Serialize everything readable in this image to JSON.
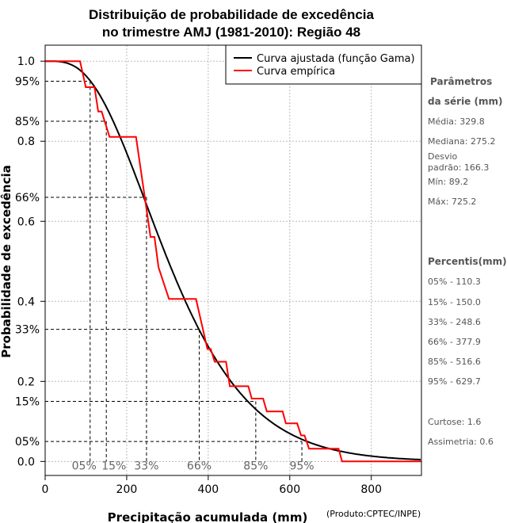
{
  "chart_data": {
    "type": "line",
    "title": [
      "Distribuição de probabilidade de excedência",
      "no trimestre AMJ (1981-2010): Região 48"
    ],
    "xlabel": "Precipitação acumulada (mm)",
    "ylabel": "Probabilidade de excedência",
    "xlim": [
      0,
      923
    ],
    "ylim": [
      -0.035,
      1.04
    ],
    "grid": true,
    "legend_position": "top-right",
    "x_ticks": [
      0,
      200,
      400,
      600,
      800
    ],
    "x_tick_labels": [
      "0",
      "200",
      "400",
      "600",
      "800"
    ],
    "y_ticks": [
      0.0,
      0.2,
      0.4,
      0.6,
      0.8,
      1.0
    ],
    "y_tick_labels": [
      "0.0",
      "0.2",
      "0.4",
      "0.6",
      "0.8",
      "1.0"
    ],
    "percentile_lines": [
      {
        "label": "05%",
        "prob": 0.95,
        "mm": 110.3,
        "ylabel": "95%"
      },
      {
        "label": "15%",
        "prob": 0.85,
        "mm": 150.0,
        "ylabel": "85%"
      },
      {
        "label": "33%",
        "prob": 0.66,
        "mm": 248.6,
        "ylabel": "66%"
      },
      {
        "label": "66%",
        "prob": 0.33,
        "mm": 377.9,
        "ylabel": "33%"
      },
      {
        "label": "85%",
        "prob": 0.15,
        "mm": 516.6,
        "ylabel": "15%"
      },
      {
        "label": "95%",
        "prob": 0.05,
        "mm": 629.7,
        "ylabel": "05%"
      }
    ],
    "series": [
      {
        "name": "Curva ajustada (função Gama)",
        "color": "#000000",
        "fit": "gamma",
        "mean": 329.8,
        "sd": 166.3
      },
      {
        "name": "Curva empírica",
        "color": "#ff0000",
        "points": [
          [
            0,
            1.0
          ],
          [
            85.5,
            1.0
          ],
          [
            99.7,
            0.935
          ],
          [
            121.1,
            0.935
          ],
          [
            130.2,
            0.874
          ],
          [
            138.6,
            0.874
          ],
          [
            158,
            0.811
          ],
          [
            222.9,
            0.811
          ],
          [
            258.5,
            0.561
          ],
          [
            268.2,
            0.561
          ],
          [
            278,
            0.485
          ],
          [
            303.8,
            0.406
          ],
          [
            369.9,
            0.406
          ],
          [
            397.9,
            0.281
          ],
          [
            406.2,
            0.281
          ],
          [
            415.9,
            0.249
          ],
          [
            443.7,
            0.249
          ],
          [
            452.9,
            0.188
          ],
          [
            498.2,
            0.188
          ],
          [
            506.7,
            0.157
          ],
          [
            534.5,
            0.157
          ],
          [
            543.6,
            0.125
          ],
          [
            582.5,
            0.125
          ],
          [
            590.3,
            0.095
          ],
          [
            618.1,
            0.095
          ],
          [
            627.8,
            0.065
          ],
          [
            636.2,
            0.065
          ],
          [
            647.2,
            0.032
          ],
          [
            719.7,
            0.032
          ],
          [
            728.3,
            0.0
          ],
          [
            923,
            0.0
          ]
        ]
      }
    ]
  },
  "credit": "(Produto:CPTEC/INPE)",
  "side_panel": {
    "params_title_1": "Parâmetros",
    "params_title_2": "da série (mm)",
    "media": "Média: 329.8",
    "mediana": "Mediana: 275.2",
    "desvio_1": "Desvio",
    "desvio_2": "padrão: 166.3",
    "min": "Mín: 89.2",
    "max": "Máx: 725.2",
    "percentis_title": "Percentis(mm)",
    "percentis": [
      "05% - 110.3",
      "15% - 150.0",
      "33% - 248.6",
      "66% - 377.9",
      "85% - 516.6",
      "95% - 629.7"
    ],
    "curtose": "Curtose: 1.6",
    "assimetria": "Assimetria: 0.6"
  }
}
